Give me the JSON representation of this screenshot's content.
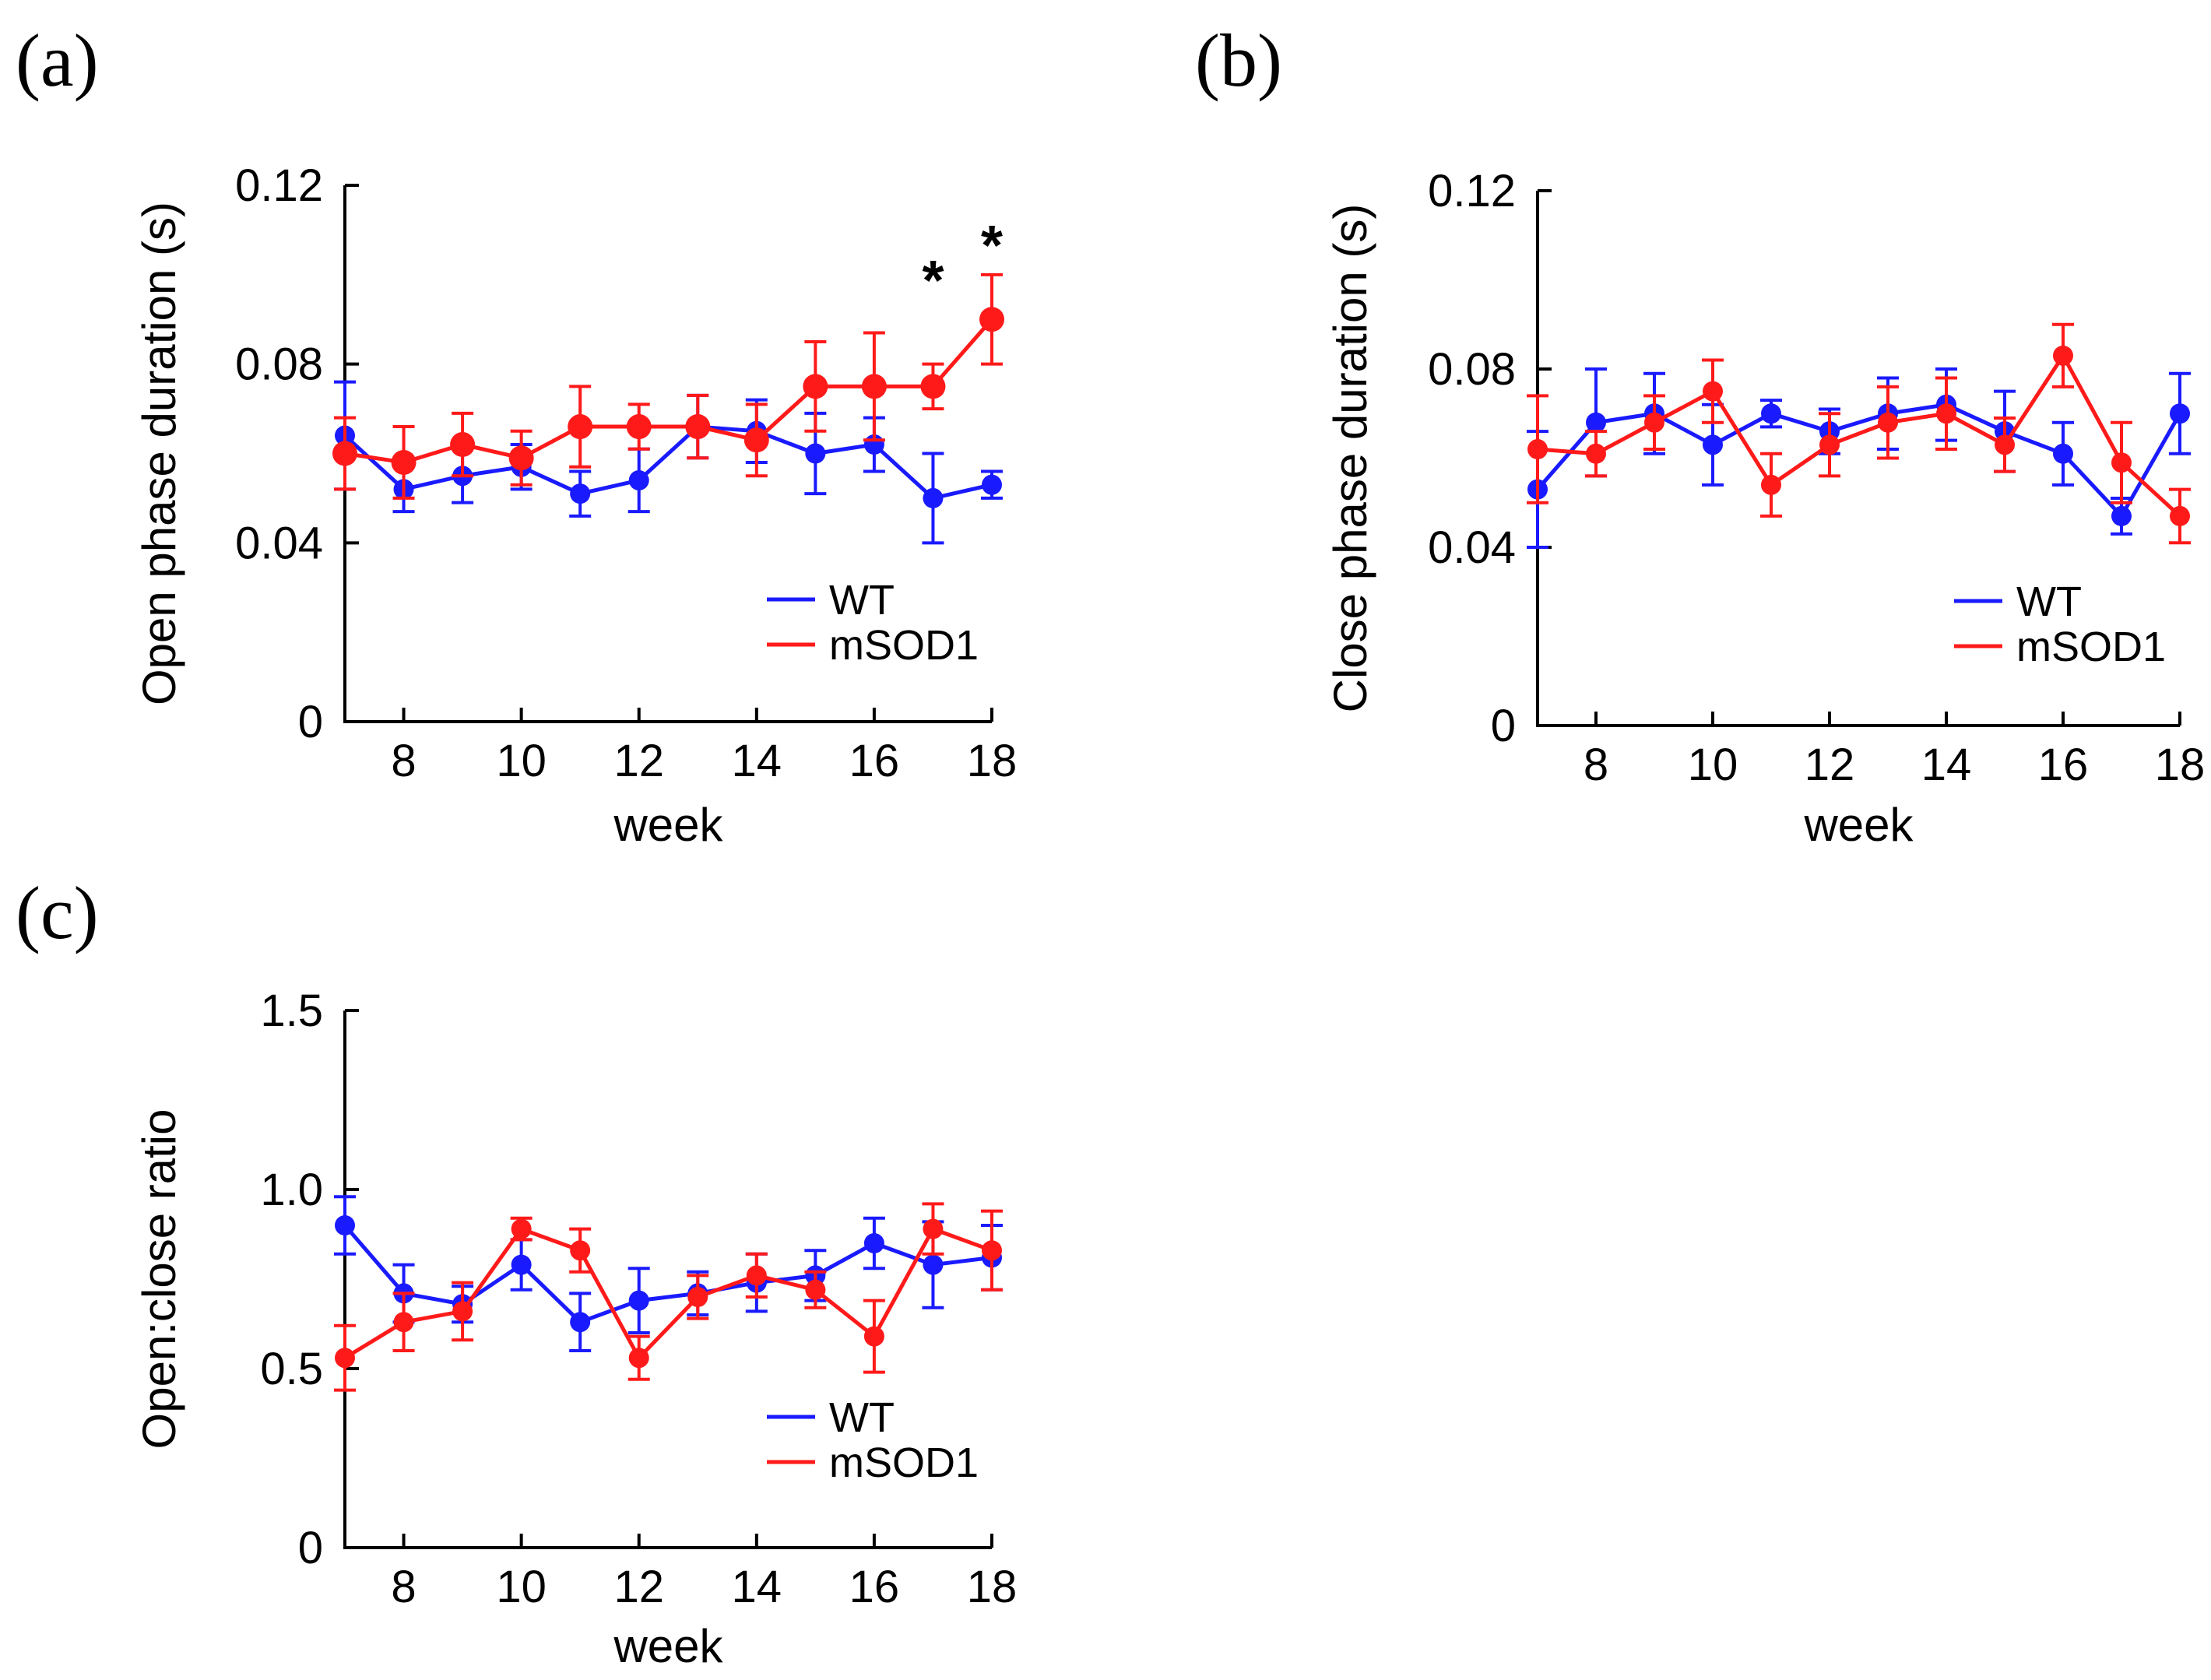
{
  "colors": {
    "wt": "#1a1aff",
    "msod1": "#ff1a1a",
    "axis": "#000000"
  },
  "chart_data": [
    {
      "panel": "(a)",
      "type": "line",
      "xlabel": "week",
      "ylabel": "Open phase duration (s)",
      "xlim": [
        7,
        18
      ],
      "ylim": [
        0,
        0.12
      ],
      "xticks": [
        8,
        10,
        12,
        14,
        16,
        18
      ],
      "yticks": [
        0,
        0.04,
        0.08,
        0.12
      ],
      "ytick_labels": [
        "0",
        "0.04",
        "0.08",
        "0.12"
      ],
      "legend": [
        "WT",
        "mSOD1"
      ],
      "legend_position": "bottom-right",
      "annotations": [
        {
          "text": "*",
          "x": 17,
          "y": 0.083
        },
        {
          "text": "*",
          "x": 18,
          "y": 0.09
        }
      ],
      "x": [
        7,
        8,
        9,
        10,
        11,
        12,
        13,
        14,
        15,
        16,
        17,
        18
      ],
      "series": [
        {
          "name": "WT",
          "color": "#1a1aff",
          "marker_size": 13,
          "values": [
            0.064,
            0.052,
            0.055,
            0.057,
            0.051,
            0.054,
            0.066,
            0.065,
            0.06,
            0.062,
            0.05,
            0.053
          ],
          "errors": [
            0.012,
            0.005,
            0.006,
            0.005,
            0.005,
            0.007,
            0.007,
            0.007,
            0.009,
            0.006,
            0.01,
            0.003
          ]
        },
        {
          "name": "mSOD1",
          "color": "#ff1a1a",
          "marker_size": 16,
          "values": [
            0.06,
            0.058,
            0.062,
            0.059,
            0.066,
            0.066,
            0.066,
            0.063,
            0.075,
            0.075,
            0.075,
            0.09
          ],
          "errors": [
            0.008,
            0.008,
            0.007,
            0.006,
            0.009,
            0.005,
            0.007,
            0.008,
            0.01,
            0.012,
            0.005,
            0.01
          ]
        }
      ]
    },
    {
      "panel": "(b)",
      "type": "line",
      "xlabel": "week",
      "ylabel": "Close phase duration (s)",
      "xlim": [
        7,
        18
      ],
      "ylim": [
        0,
        0.12
      ],
      "xticks": [
        8,
        10,
        12,
        14,
        16,
        18
      ],
      "yticks": [
        0,
        0.04,
        0.08,
        0.12
      ],
      "ytick_labels": [
        "0",
        "0.04",
        "0.08",
        "0.12"
      ],
      "legend": [
        "WT",
        "mSOD1"
      ],
      "legend_position": "bottom-right",
      "annotations": [],
      "x": [
        7,
        8,
        9,
        10,
        11,
        12,
        13,
        14,
        15,
        16,
        17,
        18
      ],
      "series": [
        {
          "name": "WT",
          "color": "#1a1aff",
          "marker_size": 13,
          "values": [
            0.053,
            0.068,
            0.07,
            0.063,
            0.07,
            0.066,
            0.07,
            0.072,
            0.066,
            0.061,
            0.047,
            0.07
          ],
          "errors": [
            0.013,
            0.012,
            0.009,
            0.009,
            0.003,
            0.005,
            0.008,
            0.008,
            0.009,
            0.007,
            0.004,
            0.009
          ]
        },
        {
          "name": "mSOD1",
          "color": "#ff1a1a",
          "marker_size": 13,
          "values": [
            0.062,
            0.061,
            0.068,
            0.075,
            0.054,
            0.063,
            0.068,
            0.07,
            0.063,
            0.083,
            0.059,
            0.047
          ],
          "errors": [
            0.012,
            0.005,
            0.006,
            0.007,
            0.007,
            0.007,
            0.008,
            0.008,
            0.006,
            0.007,
            0.009,
            0.006
          ]
        }
      ]
    },
    {
      "panel": "(c)",
      "type": "line",
      "xlabel": "week",
      "ylabel": "Open:close ratio",
      "xlim": [
        7,
        18
      ],
      "ylim": [
        0,
        1.5
      ],
      "xticks": [
        8,
        10,
        12,
        14,
        16,
        18
      ],
      "yticks": [
        0,
        0.5,
        1.0,
        1.5
      ],
      "ytick_labels": [
        "0",
        "0.5",
        "1.0",
        "1.5"
      ],
      "legend": [
        "WT",
        "mSOD1"
      ],
      "legend_position": "bottom-right",
      "annotations": [],
      "x": [
        7,
        8,
        9,
        10,
        11,
        12,
        13,
        14,
        15,
        16,
        17,
        18
      ],
      "series": [
        {
          "name": "WT",
          "color": "#1a1aff",
          "marker_size": 13,
          "values": [
            0.9,
            0.71,
            0.68,
            0.79,
            0.63,
            0.69,
            0.71,
            0.74,
            0.76,
            0.85,
            0.79,
            0.81
          ],
          "errors": [
            0.08,
            0.08,
            0.05,
            0.07,
            0.08,
            0.09,
            0.06,
            0.08,
            0.07,
            0.07,
            0.12,
            0.09
          ]
        },
        {
          "name": "mSOD1",
          "color": "#ff1a1a",
          "marker_size": 13,
          "values": [
            0.53,
            0.63,
            0.66,
            0.89,
            0.83,
            0.53,
            0.7,
            0.76,
            0.72,
            0.59,
            0.89,
            0.83
          ],
          "errors": [
            0.09,
            0.08,
            0.08,
            0.03,
            0.06,
            0.06,
            0.06,
            0.06,
            0.05,
            0.1,
            0.07,
            0.11
          ]
        }
      ]
    }
  ]
}
